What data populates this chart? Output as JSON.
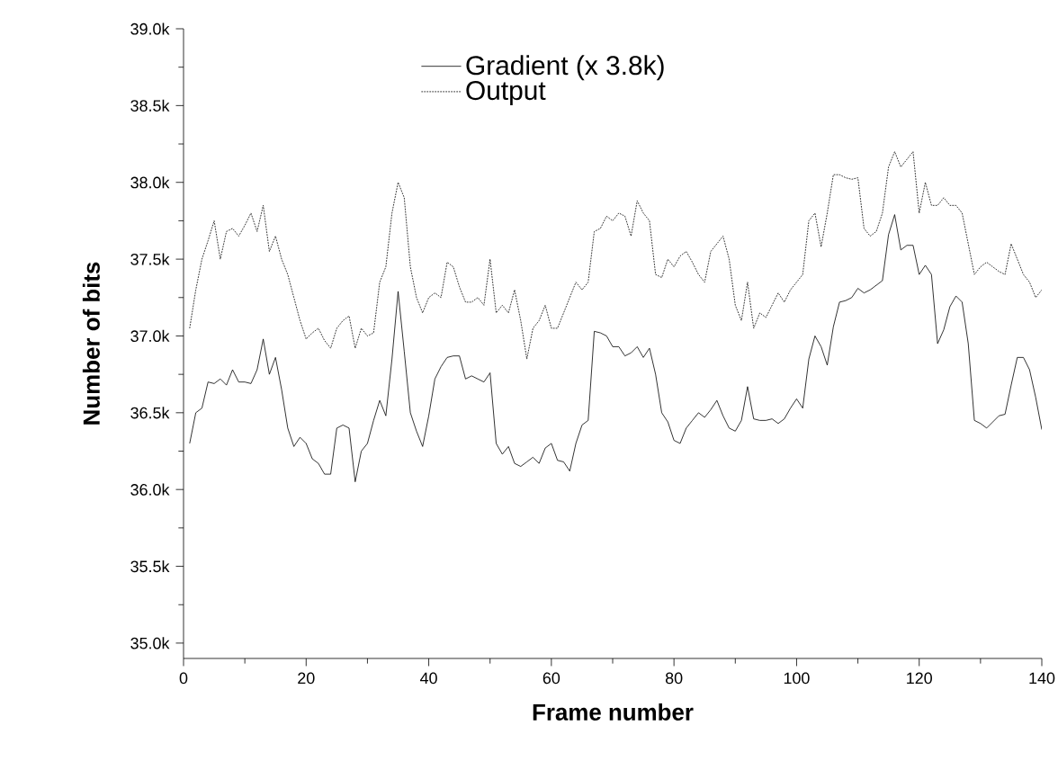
{
  "chart_data": {
    "type": "line",
    "xlabel": "Frame number",
    "ylabel": "Number of bits",
    "x": [
      1,
      2,
      3,
      4,
      5,
      6,
      7,
      8,
      9,
      10,
      11,
      12,
      13,
      14,
      15,
      16,
      17,
      18,
      19,
      20,
      21,
      22,
      23,
      24,
      25,
      26,
      27,
      28,
      29,
      30,
      31,
      32,
      33,
      34,
      35,
      36,
      37,
      38,
      39,
      40,
      41,
      42,
      43,
      44,
      45,
      46,
      47,
      48,
      49,
      50,
      51,
      52,
      53,
      54,
      55,
      56,
      57,
      58,
      59,
      60,
      61,
      62,
      63,
      64,
      65,
      66,
      67,
      68,
      69,
      70,
      71,
      72,
      73,
      74,
      75,
      76,
      77,
      78,
      79,
      80,
      81,
      82,
      83,
      84,
      85,
      86,
      87,
      88,
      89,
      90,
      91,
      92,
      93,
      94,
      95,
      96,
      97,
      98,
      99,
      100,
      101,
      102,
      103,
      104,
      105,
      106,
      107,
      108,
      109,
      110,
      111,
      112,
      113,
      114,
      115,
      116,
      117,
      118,
      119,
      120,
      121,
      122,
      123,
      124,
      125,
      126,
      127,
      128,
      129,
      130,
      131,
      132,
      133,
      134,
      135,
      136,
      137,
      138,
      139,
      140
    ],
    "series": [
      {
        "name": "Gradient (x 3.8k)",
        "color": "#000000",
        "line_style": "solid",
        "values": [
          36300,
          36500,
          36530,
          36700,
          36690,
          36720,
          36680,
          36780,
          36700,
          36700,
          36690,
          36780,
          36980,
          36750,
          36860,
          36650,
          36400,
          36280,
          36340,
          36300,
          36200,
          36170,
          36100,
          36100,
          36400,
          36420,
          36400,
          36050,
          36250,
          36300,
          36450,
          36580,
          36480,
          36850,
          37290,
          36900,
          36500,
          36380,
          36280,
          36480,
          36720,
          36800,
          36860,
          36870,
          36870,
          36720,
          36740,
          36720,
          36700,
          36760,
          36300,
          36230,
          36280,
          36170,
          36150,
          36180,
          36210,
          36170,
          36270,
          36300,
          36190,
          36180,
          36120,
          36300,
          36420,
          36450,
          37030,
          37020,
          37000,
          36930,
          36930,
          36870,
          36890,
          36930,
          36860,
          36920,
          36750,
          36500,
          36440,
          36320,
          36300,
          36400,
          36450,
          36500,
          36470,
          36520,
          36580,
          36480,
          36400,
          36380,
          36450,
          36670,
          36460,
          36450,
          36450,
          36460,
          36430,
          36460,
          36530,
          36590,
          36530,
          36850,
          37000,
          36930,
          36810,
          37060,
          37220,
          37230,
          37250,
          37310,
          37280,
          37300,
          37330,
          37360,
          37660,
          37790,
          37560,
          37590,
          37590,
          37400,
          37460,
          37400,
          36950,
          37040,
          37190,
          37260,
          37220,
          36950,
          36450,
          36430,
          36400,
          36440,
          36480,
          36490,
          36680,
          36860,
          36860,
          36780,
          36600,
          36390
        ]
      },
      {
        "name": "Output",
        "color": "#000000",
        "line_style": "dotted",
        "values": [
          37050,
          37300,
          37500,
          37620,
          37750,
          37500,
          37680,
          37700,
          37650,
          37720,
          37800,
          37680,
          37850,
          37550,
          37650,
          37500,
          37400,
          37250,
          37100,
          36980,
          37020,
          37050,
          36970,
          36920,
          37050,
          37100,
          37130,
          36920,
          37050,
          37000,
          37020,
          37350,
          37450,
          37800,
          38000,
          37900,
          37450,
          37250,
          37150,
          37250,
          37280,
          37250,
          37480,
          37450,
          37320,
          37220,
          37220,
          37250,
          37200,
          37500,
          37150,
          37200,
          37150,
          37300,
          37100,
          36850,
          37050,
          37100,
          37200,
          37050,
          37050,
          37150,
          37250,
          37350,
          37300,
          37350,
          37680,
          37700,
          37780,
          37750,
          37800,
          37780,
          37650,
          37880,
          37800,
          37750,
          37400,
          37380,
          37500,
          37450,
          37520,
          37550,
          37480,
          37400,
          37350,
          37550,
          37600,
          37650,
          37500,
          37200,
          37100,
          37350,
          37050,
          37150,
          37120,
          37200,
          37280,
          37220,
          37300,
          37350,
          37400,
          37750,
          37800,
          37580,
          37800,
          38050,
          38050,
          38030,
          38020,
          38030,
          37700,
          37650,
          37680,
          37800,
          38100,
          38200,
          38100,
          38150,
          38200,
          37800,
          38000,
          37850,
          37850,
          37900,
          37850,
          37850,
          37800,
          37600,
          37400,
          37450,
          37480,
          37450,
          37420,
          37400,
          37600,
          37500,
          37400,
          37350,
          37250,
          37300
        ]
      }
    ],
    "xlim": [
      0,
      140
    ],
    "xticks": [
      0,
      20,
      40,
      60,
      80,
      100,
      120,
      140
    ],
    "ylim": [
      34900,
      39000
    ],
    "yticks": [
      {
        "value": 35000,
        "label": "35.0k"
      },
      {
        "value": 35500,
        "label": "35.5k"
      },
      {
        "value": 36000,
        "label": "36.0k"
      },
      {
        "value": 36500,
        "label": "36.5k"
      },
      {
        "value": 37000,
        "label": "37.0k"
      },
      {
        "value": 37500,
        "label": "37.5k"
      },
      {
        "value": 38000,
        "label": "38.0k"
      },
      {
        "value": 38500,
        "label": "38.5k"
      },
      {
        "value": 39000,
        "label": "39.0k"
      }
    ],
    "legend": "top",
    "grid": false,
    "marker": "none"
  }
}
